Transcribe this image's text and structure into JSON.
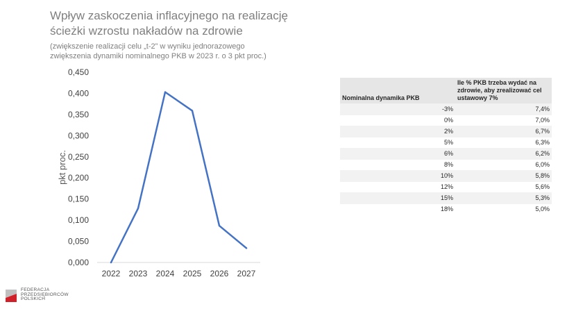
{
  "title": "Wpływ zaskoczenia inflacyjnego na realizację ścieżki wzrostu nakładów na zdrowie",
  "subtitle": "(zwiększenie realizacji celu „t-2” w wyniku jednorazowego zwiększenia dynamiki nominalnego PKB w 2023 r. o 3 pkt proc.)",
  "chart_data": {
    "type": "line",
    "x": [
      "2022",
      "2023",
      "2024",
      "2025",
      "2026",
      "2027"
    ],
    "series": [
      {
        "values": [
          0.0,
          0.128,
          0.403,
          0.359,
          0.087,
          0.034
        ]
      }
    ],
    "ylabel": "pkt proc.",
    "xlabel": "",
    "ylim": [
      0,
      0.45
    ],
    "yticks": [
      "0,000",
      "0,050",
      "0,100",
      "0,150",
      "0,200",
      "0,250",
      "0,300",
      "0,350",
      "0,400",
      "0,450"
    ],
    "grid": false,
    "line_color": "#4472c4"
  },
  "table": {
    "header_col1": "Nominalna dynamika PKB",
    "header_col2": "Ile % PKB trzeba wydać na zdrowie, aby zrealizować cel ustawowy 7%",
    "rows": [
      [
        "-3%",
        "7,4%"
      ],
      [
        "0%",
        "7,0%"
      ],
      [
        "2%",
        "6,7%"
      ],
      [
        "5%",
        "6,3%"
      ],
      [
        "6%",
        "6,2%"
      ],
      [
        "8%",
        "6,0%"
      ],
      [
        "10%",
        "5,8%"
      ],
      [
        "12%",
        "5,6%"
      ],
      [
        "15%",
        "5,3%"
      ],
      [
        "18%",
        "5,0%"
      ]
    ]
  },
  "logo": {
    "line1": "FEDERACJA",
    "line2": "PRZEDSIĘBIORCÓW",
    "line3": "POLSKICH"
  }
}
